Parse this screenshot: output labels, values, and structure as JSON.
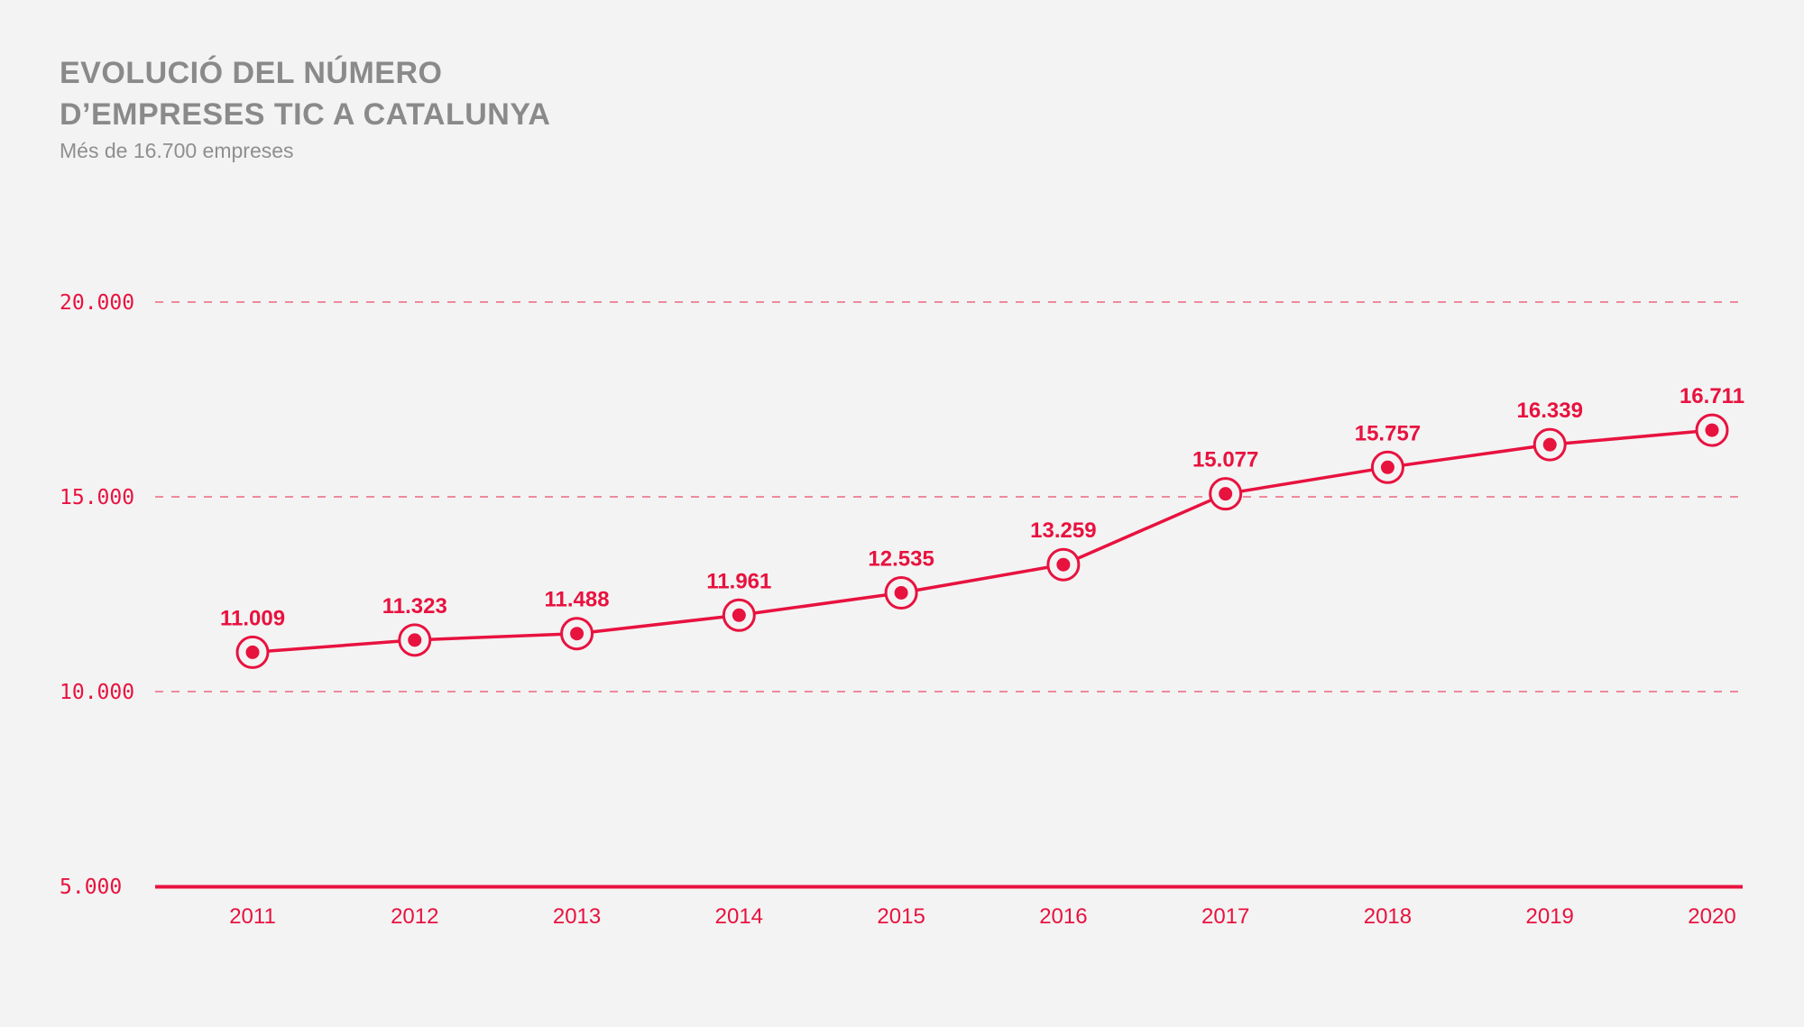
{
  "title_lines": [
    "EVOLUCIÓ DEL NÚMERO",
    "D’EMPRESES TIC A CATALUNYA"
  ],
  "subtitle": "Més de 16.700 empreses",
  "colors": {
    "accent": "#e8123f",
    "title": "#8a8a8a",
    "background": "#f3f3f3"
  },
  "chart_data": {
    "type": "line",
    "x": [
      "2011",
      "2012",
      "2013",
      "2014",
      "2015",
      "2016",
      "2017",
      "2018",
      "2019",
      "2020"
    ],
    "values": [
      11009,
      11323,
      11488,
      11961,
      12535,
      13259,
      15077,
      15757,
      16339,
      16711
    ],
    "data_labels": [
      "11.009",
      "11.323",
      "11.488",
      "11.961",
      "12.535",
      "13.259",
      "15.077",
      "15.757",
      "16.339",
      "16.711"
    ],
    "ylim": [
      5000,
      20000
    ],
    "yticks": [
      5000,
      10000,
      15000,
      20000
    ],
    "ytick_labels": [
      "5.000",
      "10.000",
      "15.000",
      "20.000"
    ],
    "gridlines": "dashed",
    "legend": "none"
  }
}
